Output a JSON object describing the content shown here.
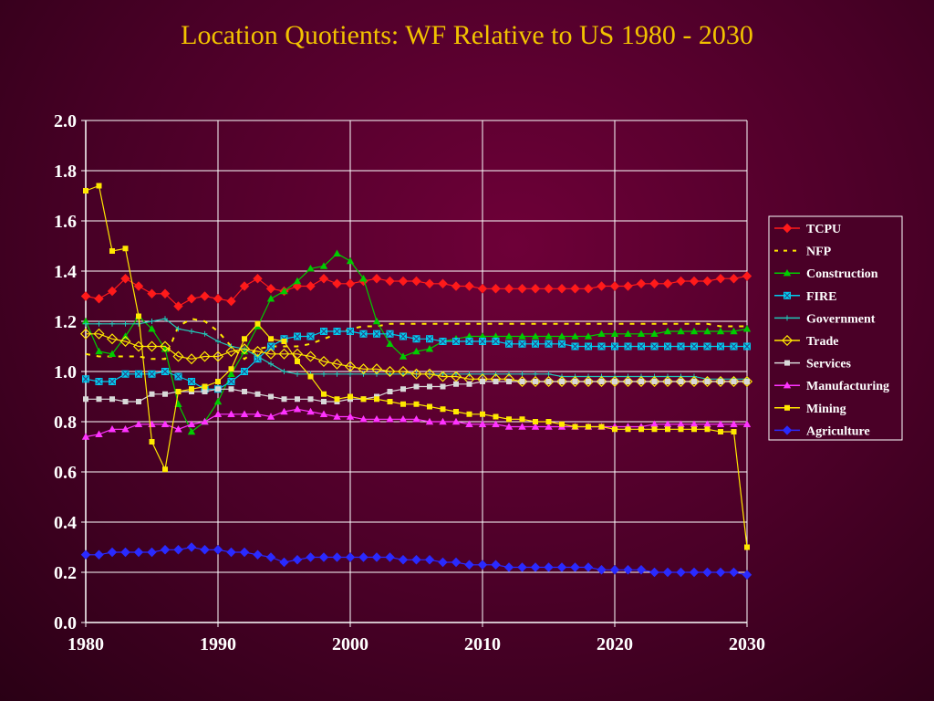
{
  "chart_data": {
    "type": "line",
    "title": "Location Quotients: WF Relative to US 1980 - 2030",
    "xlabel": "",
    "ylabel": "",
    "xlim": [
      1980,
      2030
    ],
    "ylim": [
      0,
      2.0
    ],
    "xticks": [
      "1980",
      "1990",
      "2000",
      "2010",
      "2020",
      "2030"
    ],
    "yticks": [
      "0.0",
      "0.2",
      "0.4",
      "0.6",
      "0.8",
      "1.0",
      "1.2",
      "1.4",
      "1.6",
      "1.8",
      "2.0"
    ],
    "grid": true,
    "legend_position": "right",
    "x": [
      1980,
      1981,
      1982,
      1983,
      1984,
      1985,
      1986,
      1987,
      1988,
      1989,
      1990,
      1991,
      1992,
      1993,
      1994,
      1995,
      1996,
      1997,
      1998,
      1999,
      2000,
      2001,
      2002,
      2003,
      2004,
      2005,
      2006,
      2007,
      2008,
      2009,
      2010,
      2011,
      2012,
      2013,
      2014,
      2015,
      2016,
      2017,
      2018,
      2019,
      2020,
      2021,
      2022,
      2023,
      2024,
      2025,
      2026,
      2027,
      2028,
      2029,
      2030
    ],
    "series": [
      {
        "name": "TCPU",
        "color": "#ff1a1a",
        "marker": "diamond",
        "dash": "",
        "values": [
          1.3,
          1.29,
          1.32,
          1.37,
          1.34,
          1.31,
          1.31,
          1.26,
          1.29,
          1.3,
          1.29,
          1.28,
          1.34,
          1.37,
          1.33,
          1.32,
          1.34,
          1.34,
          1.37,
          1.35,
          1.35,
          1.36,
          1.37,
          1.36,
          1.36,
          1.36,
          1.35,
          1.35,
          1.34,
          1.34,
          1.33,
          1.33,
          1.33,
          1.33,
          1.33,
          1.33,
          1.33,
          1.33,
          1.33,
          1.34,
          1.34,
          1.34,
          1.35,
          1.35,
          1.35,
          1.36,
          1.36,
          1.36,
          1.37,
          1.37,
          1.38
        ]
      },
      {
        "name": "NFP",
        "color": "#ffe800",
        "marker": "none",
        "dash": "5,7",
        "values": [
          1.07,
          1.06,
          1.06,
          1.06,
          1.06,
          1.05,
          1.05,
          1.18,
          1.21,
          1.2,
          1.16,
          1.1,
          1.05,
          1.09,
          1.1,
          1.1,
          1.1,
          1.11,
          1.13,
          1.15,
          1.17,
          1.18,
          1.18,
          1.19,
          1.19,
          1.19,
          1.19,
          1.19,
          1.19,
          1.19,
          1.19,
          1.19,
          1.19,
          1.19,
          1.19,
          1.19,
          1.19,
          1.19,
          1.19,
          1.19,
          1.19,
          1.19,
          1.19,
          1.19,
          1.19,
          1.19,
          1.19,
          1.19,
          1.18,
          1.18,
          1.18
        ]
      },
      {
        "name": "Construction",
        "color": "#00cc00",
        "marker": "triangle",
        "dash": "",
        "values": [
          1.2,
          1.08,
          1.07,
          1.14,
          1.22,
          1.17,
          1.09,
          0.87,
          0.76,
          0.8,
          0.88,
          0.99,
          1.08,
          1.18,
          1.29,
          1.32,
          1.36,
          1.41,
          1.42,
          1.47,
          1.44,
          1.37,
          1.2,
          1.11,
          1.06,
          1.08,
          1.09,
          1.12,
          1.13,
          1.14,
          1.14,
          1.14,
          1.14,
          1.14,
          1.14,
          1.14,
          1.14,
          1.14,
          1.14,
          1.15,
          1.15,
          1.15,
          1.15,
          1.15,
          1.16,
          1.16,
          1.16,
          1.16,
          1.16,
          1.16,
          1.17
        ]
      },
      {
        "name": "FIRE",
        "color": "#00ccee",
        "marker": "square-x",
        "dash": "",
        "values": [
          0.97,
          0.96,
          0.96,
          0.99,
          0.99,
          0.99,
          1.0,
          0.98,
          0.96,
          0.93,
          0.93,
          0.96,
          1.0,
          1.05,
          1.1,
          1.13,
          1.14,
          1.14,
          1.16,
          1.16,
          1.16,
          1.15,
          1.15,
          1.15,
          1.14,
          1.13,
          1.13,
          1.12,
          1.12,
          1.12,
          1.12,
          1.12,
          1.11,
          1.11,
          1.11,
          1.11,
          1.11,
          1.1,
          1.1,
          1.1,
          1.1,
          1.1,
          1.1,
          1.1,
          1.1,
          1.1,
          1.1,
          1.1,
          1.1,
          1.1,
          1.1
        ]
      },
      {
        "name": "Government",
        "color": "#20c8b8",
        "marker": "plus",
        "dash": "",
        "values": [
          1.19,
          1.19,
          1.19,
          1.19,
          1.19,
          1.2,
          1.21,
          1.17,
          1.16,
          1.15,
          1.12,
          1.1,
          1.09,
          1.06,
          1.03,
          1.0,
          0.99,
          0.99,
          0.99,
          0.99,
          0.99,
          0.99,
          0.99,
          0.99,
          0.99,
          0.99,
          0.99,
          0.99,
          0.99,
          0.99,
          0.99,
          0.99,
          0.99,
          0.99,
          0.99,
          0.99,
          0.98,
          0.98,
          0.98,
          0.98,
          0.98,
          0.98,
          0.98,
          0.98,
          0.98,
          0.98,
          0.98,
          0.97,
          0.97,
          0.97,
          0.97
        ]
      },
      {
        "name": "Trade",
        "color": "#ffe800",
        "marker": "diamond-open",
        "dash": "",
        "values": [
          1.15,
          1.15,
          1.13,
          1.12,
          1.1,
          1.1,
          1.1,
          1.06,
          1.05,
          1.06,
          1.06,
          1.08,
          1.09,
          1.08,
          1.07,
          1.07,
          1.07,
          1.06,
          1.04,
          1.03,
          1.02,
          1.01,
          1.01,
          1.0,
          1.0,
          0.99,
          0.99,
          0.98,
          0.98,
          0.97,
          0.97,
          0.97,
          0.97,
          0.96,
          0.96,
          0.96,
          0.96,
          0.96,
          0.96,
          0.96,
          0.96,
          0.96,
          0.96,
          0.96,
          0.96,
          0.96,
          0.96,
          0.96,
          0.96,
          0.96,
          0.96
        ]
      },
      {
        "name": "Services",
        "color": "#d8d8d8",
        "marker": "square",
        "dash": "",
        "values": [
          0.89,
          0.89,
          0.89,
          0.88,
          0.88,
          0.91,
          0.91,
          0.92,
          0.92,
          0.92,
          0.93,
          0.93,
          0.92,
          0.91,
          0.9,
          0.89,
          0.89,
          0.89,
          0.88,
          0.88,
          0.89,
          0.89,
          0.9,
          0.92,
          0.93,
          0.94,
          0.94,
          0.94,
          0.95,
          0.95,
          0.96,
          0.96,
          0.96,
          0.96,
          0.96,
          0.96,
          0.96,
          0.96,
          0.96,
          0.96,
          0.96,
          0.96,
          0.96,
          0.96,
          0.96,
          0.96,
          0.96,
          0.96,
          0.96,
          0.96,
          0.96
        ]
      },
      {
        "name": "Manufacturing",
        "color": "#ff33ff",
        "marker": "triangle",
        "dash": "",
        "values": [
          0.74,
          0.75,
          0.77,
          0.77,
          0.79,
          0.79,
          0.79,
          0.77,
          0.79,
          0.8,
          0.83,
          0.83,
          0.83,
          0.83,
          0.82,
          0.84,
          0.85,
          0.84,
          0.83,
          0.82,
          0.82,
          0.81,
          0.81,
          0.81,
          0.81,
          0.81,
          0.8,
          0.8,
          0.8,
          0.79,
          0.79,
          0.79,
          0.78,
          0.78,
          0.78,
          0.78,
          0.78,
          0.78,
          0.78,
          0.78,
          0.78,
          0.78,
          0.78,
          0.79,
          0.79,
          0.79,
          0.79,
          0.79,
          0.79,
          0.79,
          0.79
        ]
      },
      {
        "name": "Mining",
        "color": "#ffe800",
        "marker": "square",
        "dash": "",
        "values": [
          1.72,
          1.74,
          1.48,
          1.49,
          1.22,
          0.72,
          0.61,
          0.92,
          0.93,
          0.94,
          0.96,
          1.01,
          1.13,
          1.19,
          1.13,
          1.12,
          1.04,
          0.98,
          0.91,
          0.89,
          0.9,
          0.89,
          0.89,
          0.88,
          0.87,
          0.87,
          0.86,
          0.85,
          0.84,
          0.83,
          0.83,
          0.82,
          0.81,
          0.81,
          0.8,
          0.8,
          0.79,
          0.78,
          0.78,
          0.78,
          0.77,
          0.77,
          0.77,
          0.77,
          0.77,
          0.77,
          0.77,
          0.77,
          0.76,
          0.76,
          0.3
        ]
      },
      {
        "name": "Agriculture",
        "color": "#2a2aff",
        "marker": "diamond",
        "dash": "",
        "values": [
          0.27,
          0.27,
          0.28,
          0.28,
          0.28,
          0.28,
          0.29,
          0.29,
          0.3,
          0.29,
          0.29,
          0.28,
          0.28,
          0.27,
          0.26,
          0.24,
          0.25,
          0.26,
          0.26,
          0.26,
          0.26,
          0.26,
          0.26,
          0.26,
          0.25,
          0.25,
          0.25,
          0.24,
          0.24,
          0.23,
          0.23,
          0.23,
          0.22,
          0.22,
          0.22,
          0.22,
          0.22,
          0.22,
          0.22,
          0.21,
          0.21,
          0.21,
          0.21,
          0.2,
          0.2,
          0.2,
          0.2,
          0.2,
          0.2,
          0.2,
          0.19
        ]
      }
    ]
  }
}
